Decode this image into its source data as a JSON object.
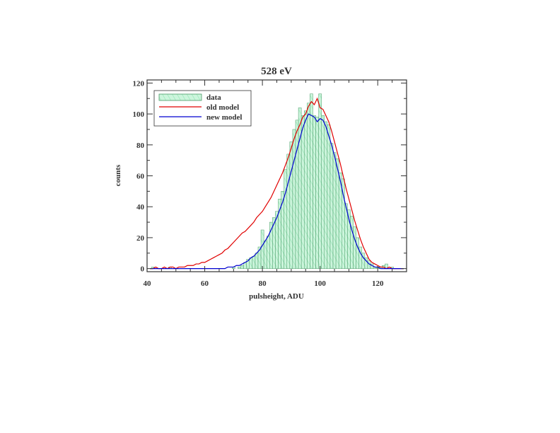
{
  "chart_data": {
    "type": "histogram",
    "title": "528 eV",
    "xlabel": "pulsheight, ADU",
    "ylabel": "counts",
    "xlim": [
      40,
      130
    ],
    "ylim": [
      -2,
      122
    ],
    "xticks": [
      40,
      60,
      80,
      100,
      120
    ],
    "yticks": [
      0,
      20,
      40,
      60,
      80,
      100,
      120
    ],
    "legend_position": "top-left",
    "grid": false,
    "colors": {
      "data_fill": "#ccf5dc",
      "data_hatch": "#8fe6b5",
      "data_edge": "#4a9a66",
      "old_model": "#e00000",
      "new_model": "#0000d0"
    },
    "series": [
      {
        "name": "data",
        "kind": "histogram",
        "bin_width": 1,
        "x": [
          41,
          42,
          43,
          44,
          45,
          46,
          47,
          48,
          49,
          50,
          51,
          52,
          53,
          54,
          55,
          56,
          57,
          58,
          59,
          60,
          61,
          62,
          63,
          64,
          65,
          66,
          67,
          68,
          69,
          70,
          71,
          72,
          73,
          74,
          75,
          76,
          77,
          78,
          79,
          80,
          81,
          82,
          83,
          84,
          85,
          86,
          87,
          88,
          89,
          90,
          91,
          92,
          93,
          94,
          95,
          96,
          97,
          98,
          99,
          100,
          101,
          102,
          103,
          104,
          105,
          106,
          107,
          108,
          109,
          110,
          111,
          112,
          113,
          114,
          115,
          116,
          117,
          118,
          119,
          120,
          121,
          122,
          123,
          124,
          125,
          126,
          127,
          128,
          129
        ],
        "values": [
          0,
          1,
          0,
          0,
          0,
          0,
          0,
          1,
          0,
          0,
          0,
          0,
          0,
          0,
          0,
          0,
          0,
          0,
          0,
          0,
          0,
          0,
          0,
          0,
          0,
          0,
          0,
          0,
          0,
          1,
          0,
          1,
          2,
          4,
          6,
          7,
          8,
          10,
          14,
          25,
          18,
          21,
          30,
          33,
          37,
          45,
          50,
          64,
          74,
          82,
          90,
          96,
          104,
          99,
          102,
          107,
          113,
          99,
          98,
          113,
          99,
          95,
          93,
          81,
          75,
          71,
          62,
          58,
          42,
          38,
          34,
          27,
          20,
          14,
          10,
          7,
          5,
          3,
          1,
          1,
          1,
          2,
          3,
          0,
          1,
          0,
          0,
          0,
          0
        ]
      },
      {
        "name": "old model",
        "kind": "line",
        "x": [
          41,
          42,
          43,
          44,
          45,
          46,
          47,
          48,
          49,
          50,
          51,
          52,
          53,
          54,
          55,
          56,
          57,
          58,
          59,
          60,
          61,
          62,
          63,
          64,
          65,
          66,
          67,
          68,
          69,
          70,
          71,
          72,
          73,
          74,
          75,
          76,
          77,
          78,
          79,
          80,
          81,
          82,
          83,
          84,
          85,
          86,
          87,
          88,
          89,
          90,
          91,
          92,
          93,
          94,
          95,
          96,
          97,
          98,
          99,
          100,
          101,
          102,
          103,
          104,
          105,
          106,
          107,
          108,
          109,
          110,
          111,
          112,
          113,
          114,
          115,
          116,
          117,
          118,
          119,
          120,
          121,
          122,
          123,
          124,
          125,
          126,
          127,
          128,
          129
        ],
        "values": [
          0,
          0,
          1,
          0,
          0,
          1,
          0,
          1,
          1,
          0,
          1,
          1,
          1,
          2,
          2,
          2,
          3,
          3,
          4,
          4,
          5,
          6,
          7,
          8,
          9,
          10,
          12,
          13,
          15,
          17,
          19,
          21,
          23,
          24,
          26,
          28,
          30,
          33,
          35,
          37,
          40,
          43,
          46,
          50,
          54,
          58,
          62,
          67,
          72,
          78,
          84,
          89,
          93,
          98,
          100,
          105,
          108,
          106,
          110,
          104,
          103,
          99,
          95,
          89,
          82,
          75,
          68,
          60,
          52,
          45,
          38,
          31,
          25,
          19,
          14,
          10,
          6,
          4,
          3,
          2,
          1,
          1,
          0,
          1,
          0,
          0,
          0,
          0,
          0
        ]
      },
      {
        "name": "new model",
        "kind": "line",
        "x": [
          41,
          42,
          43,
          44,
          45,
          46,
          47,
          48,
          49,
          50,
          51,
          52,
          53,
          54,
          55,
          56,
          57,
          58,
          59,
          60,
          61,
          62,
          63,
          64,
          65,
          66,
          67,
          68,
          69,
          70,
          71,
          72,
          73,
          74,
          75,
          76,
          77,
          78,
          79,
          80,
          81,
          82,
          83,
          84,
          85,
          86,
          87,
          88,
          89,
          90,
          91,
          92,
          93,
          94,
          95,
          96,
          97,
          98,
          99,
          100,
          101,
          102,
          103,
          104,
          105,
          106,
          107,
          108,
          109,
          110,
          111,
          112,
          113,
          114,
          115,
          116,
          117,
          118,
          119,
          120,
          121,
          122,
          123,
          124,
          125,
          126,
          127,
          128,
          129
        ],
        "values": [
          0,
          0,
          0,
          0,
          0,
          0,
          0,
          0,
          0,
          0,
          0,
          0,
          0,
          0,
          0,
          0,
          0,
          0,
          0,
          0,
          0,
          0,
          0,
          0,
          0,
          0,
          0,
          1,
          1,
          1,
          2,
          2,
          3,
          4,
          5,
          7,
          8,
          10,
          12,
          15,
          18,
          21,
          25,
          29,
          33,
          38,
          43,
          49,
          56,
          63,
          70,
          77,
          84,
          91,
          96,
          100,
          99,
          98,
          95,
          97,
          96,
          92,
          86,
          80,
          73,
          65,
          57,
          48,
          40,
          32,
          25,
          19,
          14,
          10,
          7,
          5,
          3,
          2,
          1,
          1,
          0,
          0,
          0,
          0,
          0,
          0,
          0,
          0,
          0
        ]
      }
    ]
  }
}
